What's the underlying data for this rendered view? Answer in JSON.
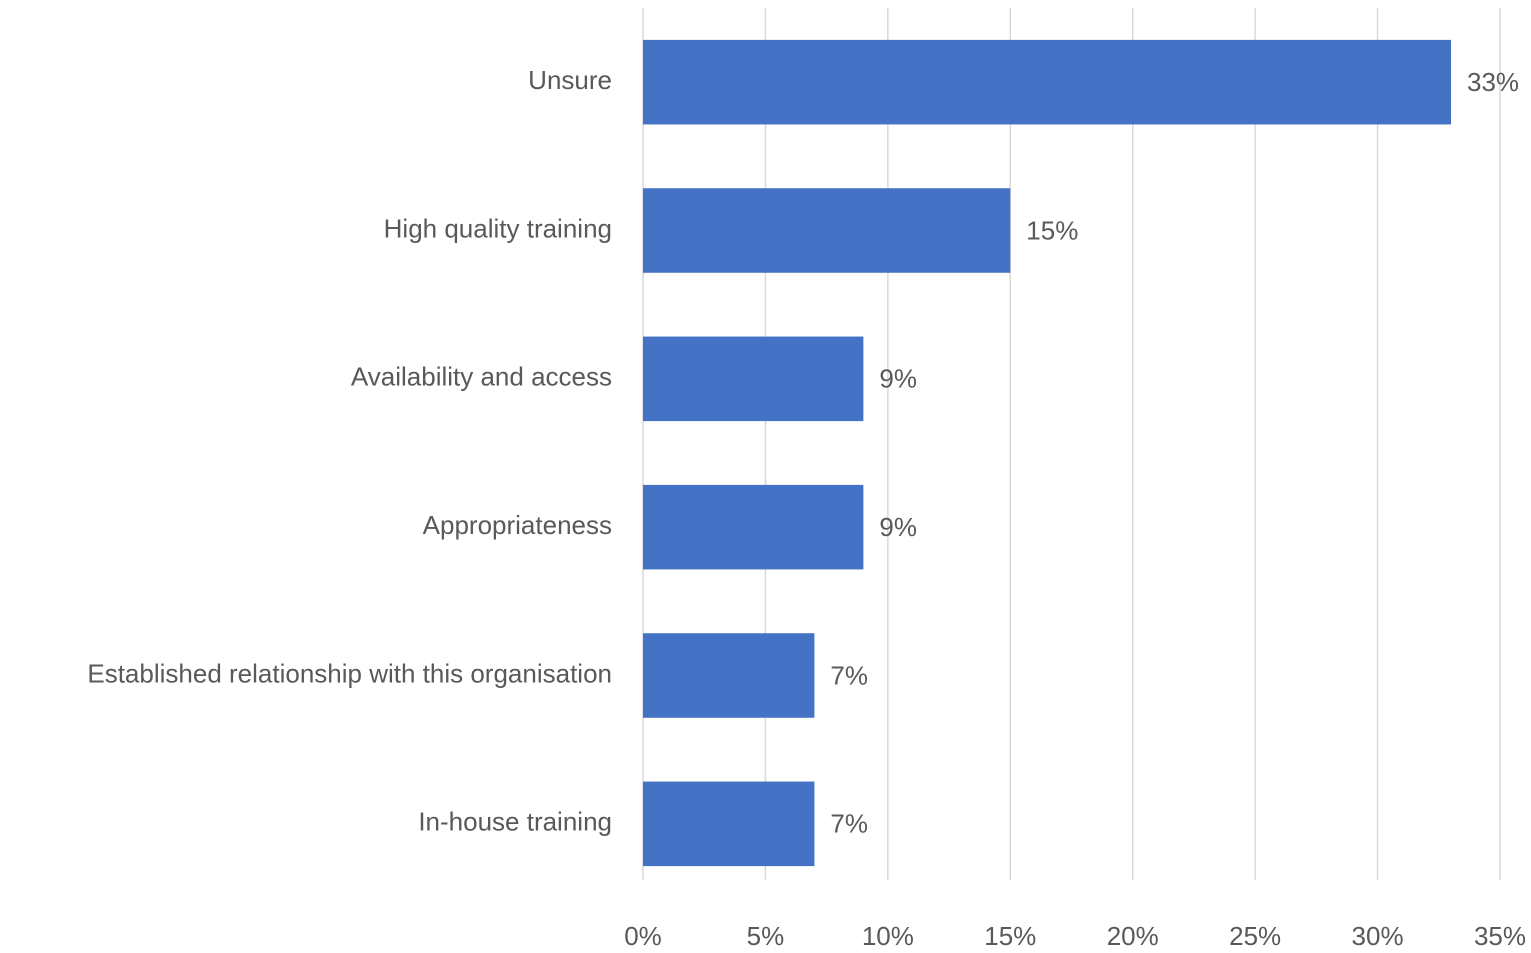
{
  "chart_data": {
    "type": "bar",
    "orientation": "horizontal",
    "categories": [
      "Unsure",
      "High quality training",
      "Availability and access",
      "Appropriateness",
      "Established relationship with this organisation",
      "In-house training"
    ],
    "values": [
      33,
      15,
      9,
      9,
      7,
      7
    ],
    "value_labels": [
      "33%",
      "15%",
      "9%",
      "9%",
      "7%",
      "7%"
    ],
    "color": "#4472c4",
    "xlim": [
      0,
      35
    ],
    "xticks": [
      {
        "value": 0,
        "label": "0%"
      },
      {
        "value": 5,
        "label": "5%"
      },
      {
        "value": 10,
        "label": "10%"
      },
      {
        "value": 15,
        "label": "15%"
      },
      {
        "value": 20,
        "label": "20%"
      },
      {
        "value": 25,
        "label": "25%"
      },
      {
        "value": 30,
        "label": "30%"
      },
      {
        "value": 35,
        "label": "35%"
      }
    ],
    "grid": true
  }
}
